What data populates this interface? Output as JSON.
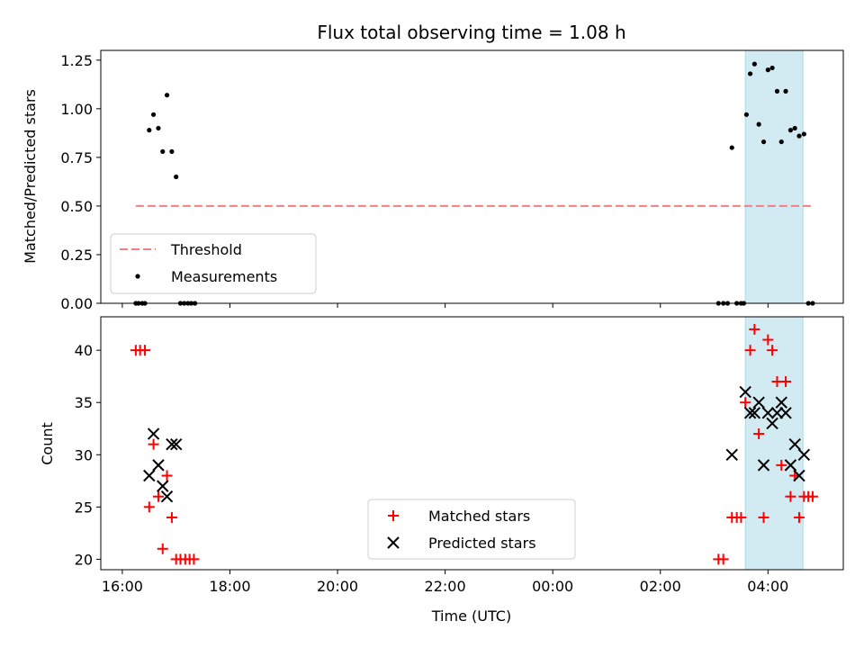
{
  "chart_data": [
    {
      "type": "scatter",
      "title": "Flux total observing time = 1.08 h",
      "xlabel": "",
      "ylabel": "Matched/Predicted stars",
      "x_unit": "hours since 2024-01-01 00:00 UTC (axis shows clock time)",
      "xlim": [
        15.6,
        29.4
      ],
      "ylim": [
        0,
        1.3
      ],
      "yticks": [
        0.0,
        0.25,
        0.5,
        0.75,
        1.0,
        1.25
      ],
      "ytick_labels": [
        "0.00",
        "0.25",
        "0.50",
        "0.75",
        "1.00",
        "1.25"
      ],
      "shaded_span": {
        "x0": 27.58,
        "x1": 28.65,
        "color": "#add8e6"
      },
      "threshold": {
        "name": "Threshold",
        "y": 0.5,
        "x0": 16.25,
        "x1": 28.85,
        "color": "#f08080"
      },
      "measurements": {
        "name": "Measurements",
        "color": "#000000",
        "points": [
          [
            16.25,
            0.0
          ],
          [
            16.3,
            0.0
          ],
          [
            16.37,
            0.0
          ],
          [
            16.42,
            0.0
          ],
          [
            16.5,
            0.89
          ],
          [
            16.58,
            0.97
          ],
          [
            16.67,
            0.9
          ],
          [
            16.75,
            0.78
          ],
          [
            16.83,
            1.07
          ],
          [
            16.92,
            0.78
          ],
          [
            17.0,
            0.65
          ],
          [
            17.08,
            0.0
          ],
          [
            17.15,
            0.0
          ],
          [
            17.22,
            0.0
          ],
          [
            17.28,
            0.0
          ],
          [
            17.35,
            0.0
          ],
          [
            27.08,
            0.0
          ],
          [
            27.17,
            0.0
          ],
          [
            27.25,
            0.0
          ],
          [
            27.33,
            0.8
          ],
          [
            27.42,
            0.0
          ],
          [
            27.5,
            0.0
          ],
          [
            27.55,
            0.0
          ],
          [
            27.6,
            0.97
          ],
          [
            27.67,
            1.18
          ],
          [
            27.75,
            1.23
          ],
          [
            27.83,
            0.92
          ],
          [
            27.92,
            0.83
          ],
          [
            28.0,
            1.2
          ],
          [
            28.08,
            1.21
          ],
          [
            28.17,
            1.09
          ],
          [
            28.25,
            0.83
          ],
          [
            28.33,
            1.09
          ],
          [
            28.42,
            0.89
          ],
          [
            28.5,
            0.9
          ],
          [
            28.58,
            0.86
          ],
          [
            28.67,
            0.87
          ],
          [
            28.75,
            0.0
          ],
          [
            28.83,
            0.0
          ]
        ]
      },
      "legend_position": "lower-left"
    },
    {
      "type": "scatter",
      "title": "",
      "xlabel": "Time (UTC)",
      "ylabel": "Count",
      "xlim": [
        15.6,
        29.4
      ],
      "ylim": [
        19.0,
        43.2
      ],
      "xticks": [
        16,
        18,
        20,
        22,
        24,
        26,
        28
      ],
      "xtick_labels": [
        "16:00",
        "18:00",
        "20:00",
        "22:00",
        "00:00",
        "02:00",
        "04:00"
      ],
      "yticks": [
        20,
        25,
        30,
        35,
        40
      ],
      "ytick_labels": [
        "20",
        "25",
        "30",
        "35",
        "40"
      ],
      "shaded_span": {
        "x0": 27.58,
        "x1": 28.65,
        "color": "#add8e6"
      },
      "matched": {
        "name": "Matched stars",
        "marker": "+",
        "color": "#ff0000",
        "points": [
          [
            16.25,
            40
          ],
          [
            16.33,
            40
          ],
          [
            16.42,
            40
          ],
          [
            16.5,
            25
          ],
          [
            16.58,
            31
          ],
          [
            16.67,
            26
          ],
          [
            16.75,
            21
          ],
          [
            16.83,
            28
          ],
          [
            16.92,
            24
          ],
          [
            17.0,
            20
          ],
          [
            17.08,
            20
          ],
          [
            17.17,
            20
          ],
          [
            17.25,
            20
          ],
          [
            17.33,
            20
          ],
          [
            27.08,
            20
          ],
          [
            27.17,
            20
          ],
          [
            27.33,
            24
          ],
          [
            27.42,
            24
          ],
          [
            27.5,
            24
          ],
          [
            27.58,
            35
          ],
          [
            27.67,
            40
          ],
          [
            27.75,
            42
          ],
          [
            27.83,
            32
          ],
          [
            27.92,
            24
          ],
          [
            28.0,
            41
          ],
          [
            28.08,
            40
          ],
          [
            28.17,
            37
          ],
          [
            28.25,
            29
          ],
          [
            28.33,
            37
          ],
          [
            28.42,
            26
          ],
          [
            28.5,
            28
          ],
          [
            28.58,
            24
          ],
          [
            28.67,
            26
          ],
          [
            28.75,
            26
          ],
          [
            28.83,
            26
          ]
        ]
      },
      "predicted": {
        "name": "Predicted stars",
        "marker": "x",
        "color": "#000000",
        "points": [
          [
            16.5,
            28
          ],
          [
            16.58,
            32
          ],
          [
            16.67,
            29
          ],
          [
            16.75,
            27
          ],
          [
            16.83,
            26
          ],
          [
            16.92,
            31
          ],
          [
            17.0,
            31
          ],
          [
            27.33,
            30
          ],
          [
            27.58,
            36
          ],
          [
            27.67,
            34
          ],
          [
            27.75,
            34
          ],
          [
            27.83,
            35
          ],
          [
            27.92,
            29
          ],
          [
            28.0,
            34
          ],
          [
            28.08,
            33
          ],
          [
            28.17,
            34
          ],
          [
            28.25,
            35
          ],
          [
            28.33,
            34
          ],
          [
            28.42,
            29
          ],
          [
            28.5,
            31
          ],
          [
            28.58,
            28
          ],
          [
            28.67,
            30
          ]
        ]
      },
      "legend_position": "lower-center"
    }
  ]
}
